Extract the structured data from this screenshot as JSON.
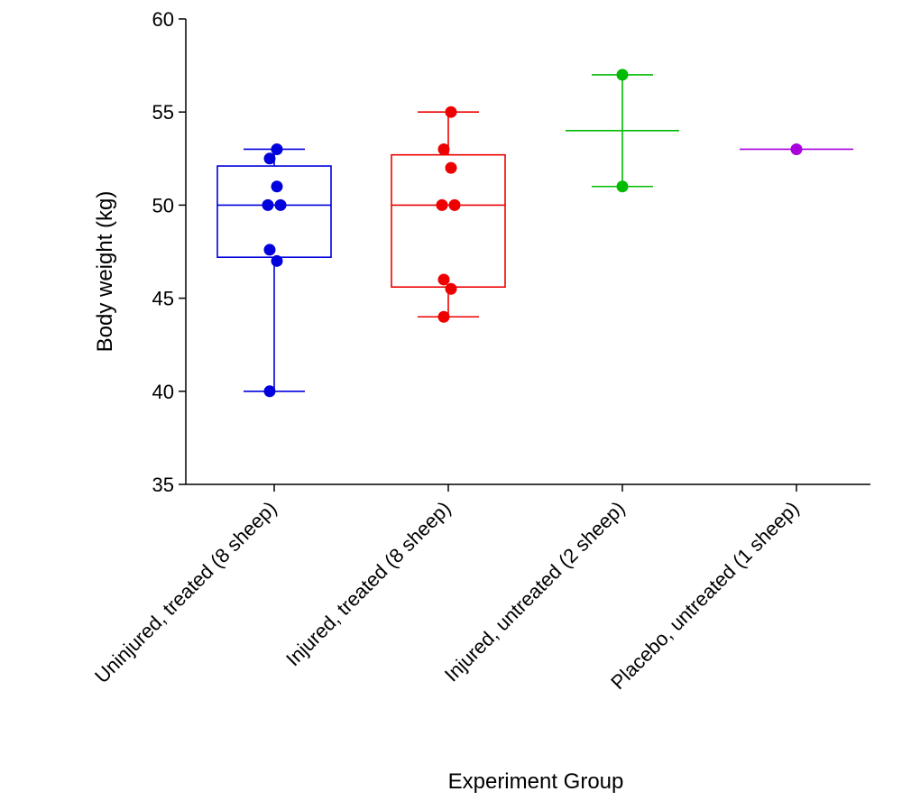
{
  "chart_data": {
    "type": "box",
    "title": "",
    "xlabel": "Experiment Group",
    "ylabel": "Body weight (kg)",
    "ylim": [
      35,
      60
    ],
    "yticks": [
      35,
      40,
      45,
      50,
      55,
      60
    ],
    "ytick_labels": [
      "35",
      "40",
      "45",
      "50",
      "55",
      "60"
    ],
    "grid": false,
    "legend": "none",
    "categories": [
      "Uninjured, treated (8 sheep)",
      "Injured, treated (8 sheep)",
      "Injured, untreated (2 sheep)",
      "Placebo, untreated (1 sheep)"
    ],
    "groups": [
      {
        "color": "#0000dd",
        "box": true,
        "whisker_low": 40,
        "q1": 47.2,
        "median": 50,
        "q3": 52.1,
        "whisker_high": 53,
        "points": [
          53,
          52.5,
          51,
          50,
          50,
          47.6,
          47,
          40
        ]
      },
      {
        "color": "#ee0000",
        "box": true,
        "whisker_low": 44,
        "q1": 45.6,
        "median": 50,
        "q3": 52.7,
        "whisker_high": 55,
        "points": [
          55,
          53,
          52,
          50,
          50,
          46,
          45.5,
          44
        ]
      },
      {
        "color": "#00bb00",
        "box": false,
        "whisker_low": 51,
        "median": 54,
        "whisker_high": 57,
        "points": [
          57,
          51
        ]
      },
      {
        "color": "#aa00dd",
        "box": false,
        "whisker_low": 53,
        "median": 53,
        "whisker_high": 53,
        "points": [
          53
        ]
      }
    ]
  }
}
